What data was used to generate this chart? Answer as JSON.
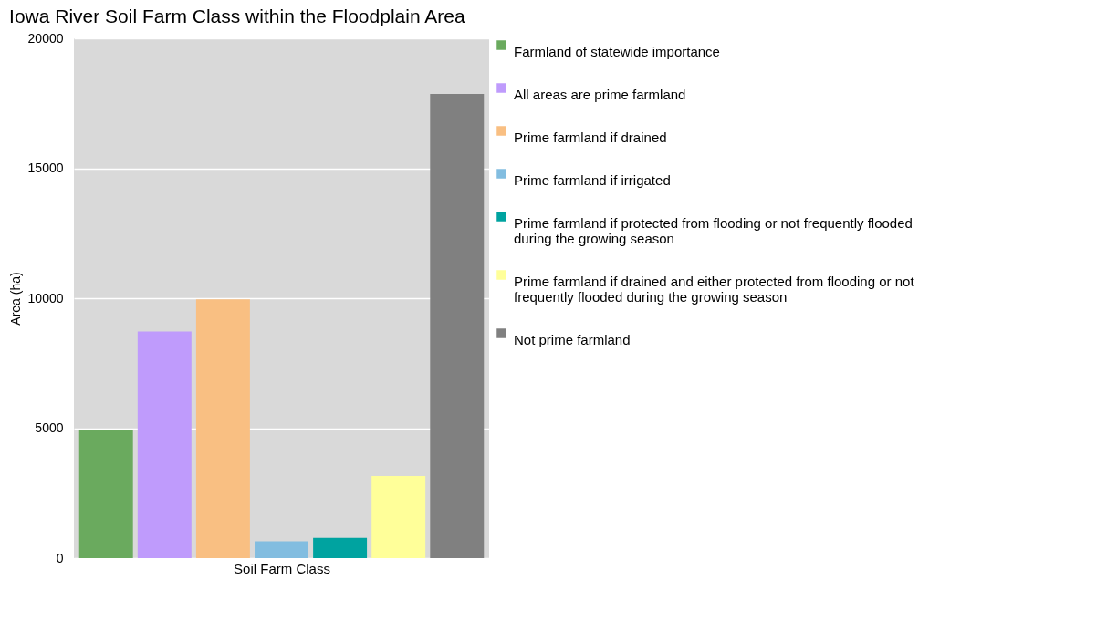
{
  "chart_data": {
    "type": "bar",
    "title": "Iowa River Soil Farm Class within the Floodplain Area",
    "xlabel": "Soil Farm Class",
    "ylabel": "Area (ha)",
    "categories": [
      null
    ],
    "series": [
      {
        "name": "Farmland of statewide importance",
        "color": "#6aaa5e",
        "values": [
          4930
        ]
      },
      {
        "name": "All areas are prime farmland",
        "color": "#bf9bfc",
        "values": [
          8720
        ]
      },
      {
        "name": "Prime farmland if drained",
        "color": "#f9bf82",
        "values": [
          9960
        ]
      },
      {
        "name": "Prime farmland if irrigated",
        "color": "#82bde0",
        "values": [
          650
        ]
      },
      {
        "name": "Prime farmland if protected from flooding or not frequently flooded during the growing season",
        "color": "#00a3a0",
        "values": [
          780
        ]
      },
      {
        "name": "Prime farmland if drained and either protected from flooding or not frequently flooded during the growing season",
        "color": "#ffff99",
        "values": [
          3160
        ]
      },
      {
        "name": "Not prime farmland",
        "color": "#808080",
        "values": [
          17860
        ]
      }
    ],
    "ylim": [
      0,
      20000
    ],
    "yticks": [
      0,
      5000,
      10000,
      15000,
      20000
    ],
    "grid": "y",
    "legend": "right"
  }
}
